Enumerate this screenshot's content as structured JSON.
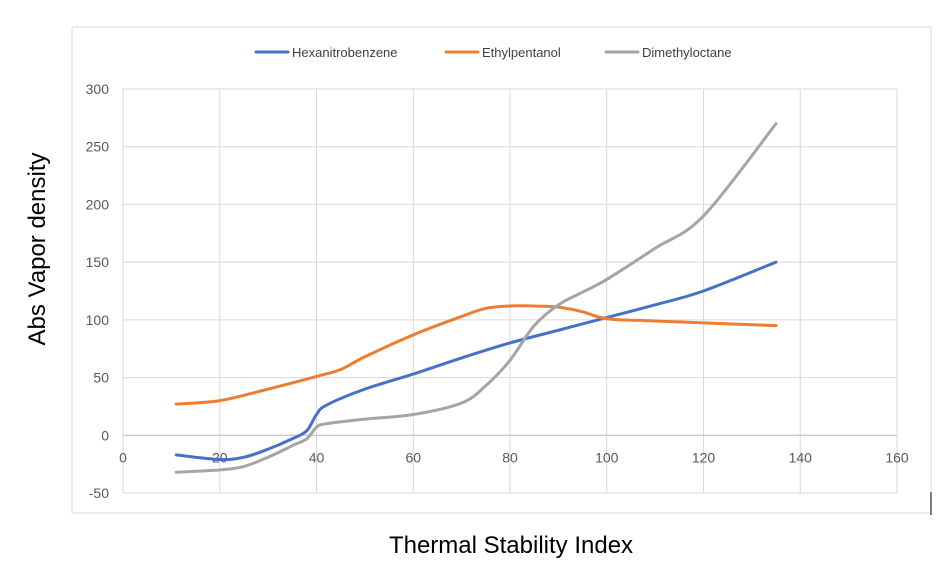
{
  "chart_data": {
    "type": "line",
    "title": "",
    "xlabel": "Thermal Stability Index",
    "ylabel": "Abs Vapor density",
    "xlim": [
      0,
      160
    ],
    "ylim": [
      -50,
      300
    ],
    "xticks": [
      0,
      20,
      40,
      60,
      80,
      100,
      120,
      140,
      160
    ],
    "yticks": [
      -50,
      0,
      50,
      100,
      150,
      200,
      250,
      300
    ],
    "grid": true,
    "legend_position": "top",
    "series": [
      {
        "name": "Hexanitrobenzene",
        "color": "#4472C4",
        "x": [
          11,
          20,
          25,
          30,
          35,
          38,
          40,
          42,
          50,
          60,
          70,
          80,
          90,
          100,
          110,
          120,
          135
        ],
        "y": [
          -17,
          -21,
          -19,
          -12,
          -3,
          4,
          18,
          26,
          40,
          53,
          67,
          80,
          91,
          102,
          113,
          125,
          150
        ]
      },
      {
        "name": "Ethylpentanol",
        "color": "#ED7D31",
        "x": [
          11,
          20,
          30,
          40,
          45,
          50,
          60,
          70,
          75,
          80,
          85,
          90,
          95,
          100,
          110,
          135
        ],
        "y": [
          27,
          30,
          40,
          51,
          57,
          68,
          87,
          103,
          110,
          112,
          112,
          111,
          107,
          101,
          99,
          95
        ]
      },
      {
        "name": "Dimethyloctane",
        "color": "#A5A5A5",
        "x": [
          11,
          20,
          25,
          30,
          35,
          38,
          40,
          42,
          50,
          60,
          70,
          75,
          80,
          85,
          90,
          95,
          100,
          110,
          120,
          135
        ],
        "y": [
          -32,
          -30,
          -27,
          -19,
          -9,
          -3,
          7,
          10,
          14,
          18,
          28,
          43,
          65,
          95,
          113,
          124,
          135,
          162,
          190,
          270
        ]
      }
    ]
  }
}
